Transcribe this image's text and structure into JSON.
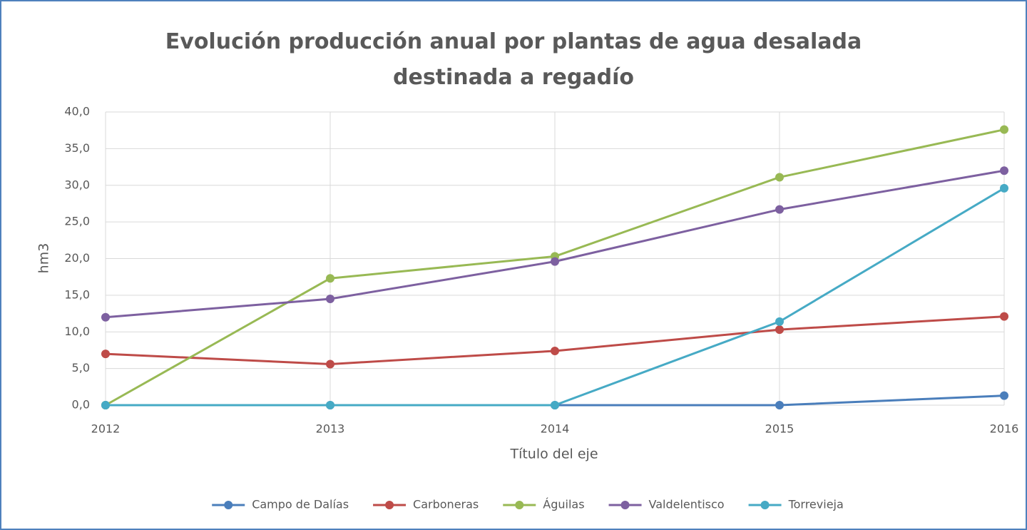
{
  "chart_data": {
    "type": "line",
    "title": "Evolución producción anual por plantas de agua desalada destinada a regadío",
    "x_label": "Título del eje",
    "y_label": "hm3",
    "categories": [
      "2012",
      "2013",
      "2014",
      "2015",
      "2016"
    ],
    "ylim": [
      0,
      40
    ],
    "yticks": [
      {
        "value": 0,
        "label": "0,0"
      },
      {
        "value": 5,
        "label": "5,0"
      },
      {
        "value": 10,
        "label": "10,0"
      },
      {
        "value": 15,
        "label": "15,0"
      },
      {
        "value": 20,
        "label": "20,0"
      },
      {
        "value": 25,
        "label": "25,0"
      },
      {
        "value": 30,
        "label": "30,0"
      },
      {
        "value": 35,
        "label": "35,0"
      },
      {
        "value": 40,
        "label": "40,0"
      }
    ],
    "grid": true,
    "legend": "bottom",
    "series": [
      {
        "name": "Campo de Dalías",
        "color": "#4a7ebb",
        "values": [
          0,
          0,
          0,
          0,
          1.3
        ]
      },
      {
        "name": "Carboneras",
        "color": "#be4b48",
        "values": [
          7.0,
          5.6,
          7.4,
          10.3,
          12.1
        ]
      },
      {
        "name": "Águilas",
        "color": "#98b954",
        "values": [
          0,
          17.3,
          20.3,
          31.1,
          37.6
        ]
      },
      {
        "name": "Valdelentisco",
        "color": "#7d60a0",
        "values": [
          12.0,
          14.5,
          19.6,
          26.7,
          32.0
        ]
      },
      {
        "name": "Torrevieja",
        "color": "#46aac5",
        "values": [
          0,
          0,
          0,
          11.4,
          29.6
        ]
      }
    ]
  }
}
